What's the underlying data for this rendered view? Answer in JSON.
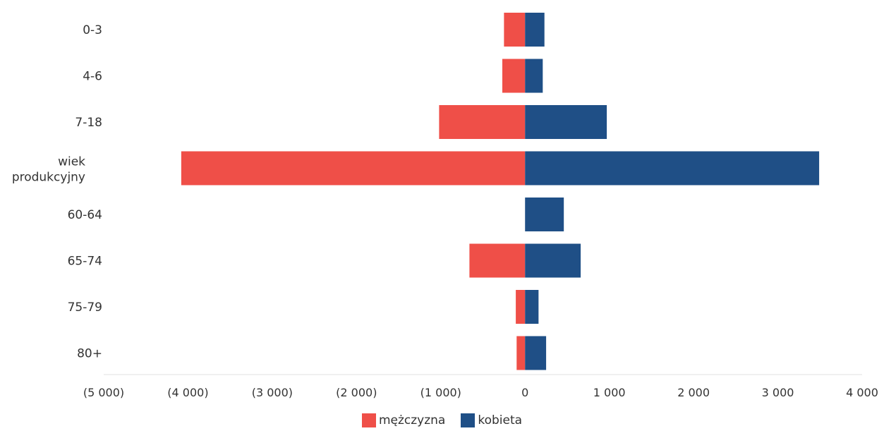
{
  "chart_data": {
    "type": "bar",
    "orientation": "horizontal",
    "categories": [
      "0-3",
      "4-6",
      "7-18",
      "wiek produkcyjny",
      "60-64",
      "65-74",
      "75-79",
      "80+"
    ],
    "series": [
      {
        "name": "mężczyzna",
        "color": "#ef4f48",
        "values": [
          -250,
          -270,
          -1020,
          -4080,
          0,
          -660,
          -110,
          -100
        ]
      },
      {
        "name": "kobieta",
        "color": "#1f4f86",
        "values": [
          230,
          210,
          970,
          3490,
          460,
          660,
          160,
          250
        ]
      }
    ],
    "xlim": [
      -5000,
      4000
    ],
    "x_ticks": [
      -5000,
      -4000,
      -3000,
      -2000,
      -1000,
      0,
      1000,
      2000,
      3000,
      4000
    ],
    "x_tick_labels": [
      "(5 000)",
      "(4 000)",
      "(3 000)",
      "(2 000)",
      "(1 000)",
      "0",
      "1 000",
      "2 000",
      "3 000",
      "4 000"
    ],
    "stacked": true,
    "legend_position": "bottom-center"
  }
}
